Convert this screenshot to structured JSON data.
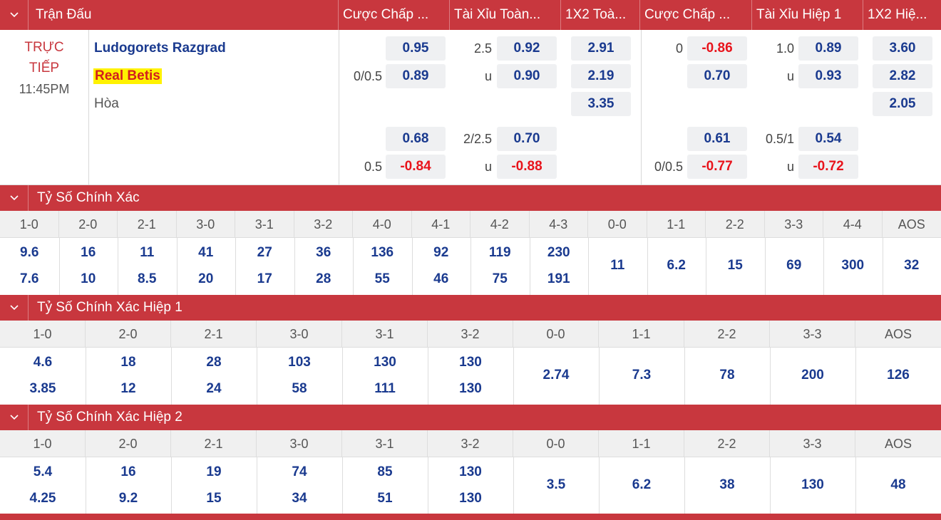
{
  "header": {
    "match_label": "Trận Đấu",
    "cols": [
      "Cược Chấp ...",
      "Tài Xỉu Toàn...",
      "1X2 Toà...",
      "Cược Chấp ...",
      "Tài Xỉu Hiệp 1",
      "1X2 Hiệ..."
    ]
  },
  "match": {
    "status": "TRỰC",
    "status2": "TIẾP",
    "time": "11:45PM",
    "home": "Ludogorets Razgrad",
    "away": "Real Betis",
    "draw": "Hòa",
    "ft_handicap": {
      "line1": "",
      "home1": "0.95",
      "line1b": "0/0.5",
      "away1": "0.89",
      "line2": "",
      "home2": "0.68",
      "line2b": "0.5",
      "away2": "-0.84"
    },
    "ft_ou": {
      "line1": "2.5",
      "over1": "0.92",
      "u1": "u",
      "under1": "0.90",
      "line2": "2/2.5",
      "over2": "0.70",
      "u2": "u",
      "under2": "-0.88"
    },
    "ft_1x2": {
      "home": "2.91",
      "away": "2.19",
      "draw": "3.35"
    },
    "h1_handicap": {
      "line1": "0",
      "home1": "-0.86",
      "away1": "0.70",
      "home2": "0.61",
      "line2b": "0/0.5",
      "away2": "-0.77"
    },
    "h1_ou": {
      "line1": "1.0",
      "over1": "0.89",
      "u1": "u",
      "under1": "0.93",
      "line2": "0.5/1",
      "over2": "0.54",
      "u2": "u",
      "under2": "-0.72"
    },
    "h1_1x2": {
      "home": "3.60",
      "away": "2.82",
      "draw": "2.05"
    }
  },
  "cs_full": {
    "title": "Tỷ Số Chính Xác",
    "scores": [
      "1-0",
      "2-0",
      "2-1",
      "3-0",
      "3-1",
      "3-2",
      "4-0",
      "4-1",
      "4-2",
      "4-3",
      "0-0",
      "1-1",
      "2-2",
      "3-3",
      "4-4",
      "AOS"
    ],
    "top": [
      "9.6",
      "16",
      "11",
      "41",
      "27",
      "36",
      "136",
      "92",
      "119",
      "230"
    ],
    "bottom": [
      "7.6",
      "10",
      "8.5",
      "20",
      "17",
      "28",
      "55",
      "46",
      "75",
      "191"
    ],
    "single": [
      "11",
      "6.2",
      "15",
      "69",
      "300",
      "32"
    ]
  },
  "cs_h1": {
    "title": "Tỷ Số Chính Xác Hiệp 1",
    "scores": [
      "1-0",
      "2-0",
      "2-1",
      "3-0",
      "3-1",
      "3-2",
      "0-0",
      "1-1",
      "2-2",
      "3-3",
      "AOS"
    ],
    "top": [
      "4.6",
      "18",
      "28",
      "103",
      "130",
      "130"
    ],
    "bottom": [
      "3.85",
      "12",
      "24",
      "58",
      "111",
      "130"
    ],
    "single": [
      "2.74",
      "7.3",
      "78",
      "200",
      "126"
    ]
  },
  "cs_h2": {
    "title": "Tỷ Số Chính Xác Hiệp 2",
    "scores": [
      "1-0",
      "2-0",
      "2-1",
      "3-0",
      "3-1",
      "3-2",
      "0-0",
      "1-1",
      "2-2",
      "3-3",
      "AOS"
    ],
    "top": [
      "5.4",
      "16",
      "19",
      "74",
      "85",
      "130"
    ],
    "bottom": [
      "4.25",
      "9.2",
      "15",
      "34",
      "51",
      "130"
    ],
    "single": [
      "3.5",
      "6.2",
      "38",
      "130",
      "48"
    ]
  }
}
